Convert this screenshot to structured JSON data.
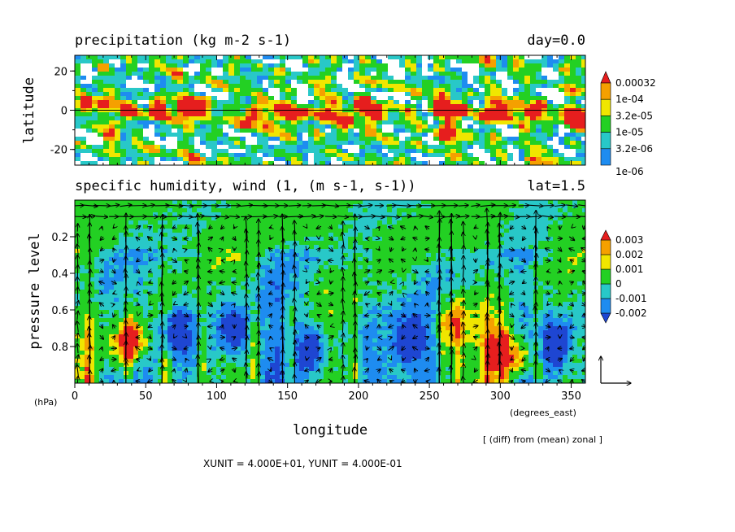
{
  "colors": {
    "white": "#ffffff",
    "dark_blue": "#1e46d2",
    "blue": "#1e8cf0",
    "cyan": "#28c8c8",
    "green": "#23d023",
    "yellow": "#f0e600",
    "orange": "#f5a000",
    "red": "#e61e1e"
  },
  "chart_data": [
    {
      "type": "heatmap",
      "title": "precipitation (kg m-2 s-1)",
      "title_right": "day=0.0",
      "ylabel": "latitude",
      "xlim": [
        0,
        360
      ],
      "ylim": [
        -28,
        28
      ],
      "yticks": [
        20,
        0,
        -20
      ],
      "reference_line_y": 0,
      "legend": {
        "position": "right",
        "levels": [
          "0.00032",
          "1e-04",
          "3.2e-05",
          "1e-05",
          "3.2e-06",
          "1e-06"
        ],
        "colors": [
          "#e61e1e",
          "#f5a000",
          "#f0e600",
          "#23d023",
          "#28c8c8",
          "#1e8cf0"
        ]
      },
      "features": [
        {
          "x": 5,
          "y": 2,
          "value": 0.00032
        },
        {
          "x": 35,
          "y": 0,
          "value": 0.00032
        },
        {
          "x": 57,
          "y": 1,
          "value": 0.00032
        },
        {
          "x": 77,
          "y": 0,
          "value": 0.0001
        },
        {
          "x": 86,
          "y": 5,
          "value": 0.00032
        },
        {
          "x": 123,
          "y": -2,
          "value": 0.00032
        },
        {
          "x": 143,
          "y": 0,
          "value": 0.0001
        },
        {
          "x": 152,
          "y": -2,
          "value": 0.00032
        },
        {
          "x": 175,
          "y": 1,
          "value": 0.0001
        },
        {
          "x": 189,
          "y": -3,
          "value": 0.00032
        },
        {
          "x": 200,
          "y": 3,
          "value": 0.0001
        },
        {
          "x": 210,
          "y": 0,
          "value": 0.00032
        },
        {
          "x": 255,
          "y": 2,
          "value": 0.00032
        },
        {
          "x": 258,
          "y": -12,
          "value": 0.00032
        },
        {
          "x": 268,
          "y": 0,
          "value": 0.0001
        },
        {
          "x": 288,
          "y": -3,
          "value": 0.0001
        },
        {
          "x": 300,
          "y": 1,
          "value": 0.00032
        },
        {
          "x": 322,
          "y": 0,
          "value": 0.0001
        },
        {
          "x": 347,
          "y": -2,
          "value": 0.0001
        },
        {
          "x": 356,
          "y": -5,
          "value": 0.00032
        }
      ]
    },
    {
      "type": "heatmap",
      "title": "specific humidity, wind (1, (m s-1, s-1))",
      "title_right": "lat=1.5",
      "xlabel": "longitude",
      "ylabel": "pressure level",
      "y_unit": "(hPa)",
      "x_unit": "(degrees_east)",
      "xlim": [
        0,
        360
      ],
      "ylim": [
        1.0,
        0.0
      ],
      "xticks": [
        0,
        50,
        100,
        150,
        200,
        250,
        300,
        350
      ],
      "yticks": [
        0.2,
        0.4,
        0.6,
        0.8
      ],
      "legend": {
        "position": "right",
        "levels": [
          "0.003",
          "0.002",
          "0.001",
          "0",
          "-0.001",
          "-0.002"
        ],
        "colors": [
          "#e61e1e",
          "#f5a000",
          "#f0e600",
          "#23d023",
          "#28c8c8",
          "#1e8cf0",
          "#1e46d2"
        ]
      },
      "vector_overlay": "wind",
      "updraft_columns": [
        8,
        36,
        63,
        88,
        125,
        150,
        195,
        258,
        268,
        290,
        300,
        325
      ],
      "features": [
        {
          "x": 30,
          "y": 0.8,
          "value": 0.002
        },
        {
          "x": 40,
          "y": 0.75,
          "value": 0.003
        },
        {
          "x": 70,
          "y": 0.7,
          "value": -0.002
        },
        {
          "x": 110,
          "y": 0.7,
          "value": -0.002
        },
        {
          "x": 165,
          "y": 0.8,
          "value": -0.002
        },
        {
          "x": 235,
          "y": 0.75,
          "value": -0.002
        },
        {
          "x": 265,
          "y": 0.65,
          "value": 0.002
        },
        {
          "x": 298,
          "y": 0.82,
          "value": 0.003
        },
        {
          "x": 312,
          "y": 0.85,
          "value": 0.003
        },
        {
          "x": 338,
          "y": 0.78,
          "value": -0.002
        }
      ]
    }
  ],
  "annotations": {
    "diff_note": "[ (diff) from (mean) zonal ]",
    "unit_note": "XUNIT = 4.000E+01, YUNIT = 4.000E-01"
  }
}
